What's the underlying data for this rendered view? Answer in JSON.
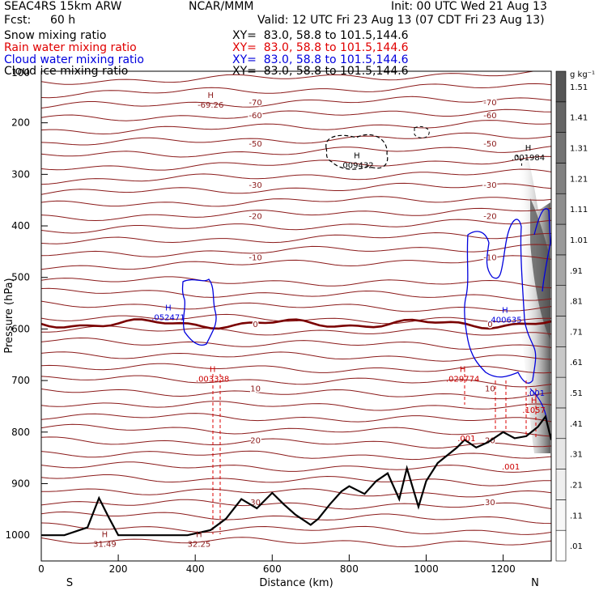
{
  "header": {
    "model": "SEAC4RS 15km ARW",
    "org": "NCAR/MMM",
    "init": "Init: 00 UTC Wed 21 Aug 13",
    "fcst_label": "Fcst:",
    "fcst_value": "60 h",
    "valid": "Valid: 12 UTC Fri 23 Aug 13 (07 CDT Fri 23 Aug 13)"
  },
  "fields": [
    {
      "name": "Snow mixing ratio",
      "xy": "XY=  83.0, 58.8 to 101.5,144.6",
      "color": "#000000"
    },
    {
      "name": "Rain water mixing ratio",
      "xy": "XY=  83.0, 58.8 to 101.5,144.6",
      "color": "#e00000"
    },
    {
      "name": "Cloud water mixing ratio",
      "xy": "XY=  83.0, 58.8 to 101.5,144.6",
      "color": "#0000dd"
    },
    {
      "name": "Cloud ice mixing ratio",
      "xy": "XY=  83.0, 58.8 to 101.5,144.6",
      "color": "#000000"
    }
  ],
  "chart_data": {
    "type": "cross-section contour",
    "xlabel": "Distance (km)",
    "ylabel": "Pressure (hPa)",
    "xlim": [
      0,
      1325
    ],
    "ylim": [
      1050,
      100
    ],
    "x_ticks": [
      0,
      200,
      400,
      600,
      800,
      1000,
      1200
    ],
    "y_ticks": [
      200,
      300,
      400,
      500,
      600,
      700,
      800,
      900,
      1000
    ],
    "y_top_label": "100",
    "left_end_label": "S",
    "right_end_label": "N",
    "colorbar": {
      "unit": "g kg⁻¹",
      "levels": [
        ".01",
        ".11",
        ".21",
        ".31",
        ".41",
        ".51",
        ".61",
        ".71",
        ".81",
        ".91",
        "1.01",
        "1.11",
        "1.21",
        "1.31",
        "1.41",
        "1.51"
      ],
      "colors": [
        "#ffffff",
        "#f7f7f7",
        "#efefef",
        "#e6e6e6",
        "#dcdcdc",
        "#d2d2d2",
        "#c8c8c8",
        "#bdbdbd",
        "#b2b2b2",
        "#a6a6a6",
        "#9a9a9a",
        "#8e8e8e",
        "#818181",
        "#737373",
        "#656565",
        "#555555"
      ]
    },
    "isotherms_celsius": [
      {
        "label": "-70",
        "p": 160
      },
      {
        "label": "-60",
        "p": 185
      },
      {
        "label": "-50",
        "p": 240
      },
      {
        "label": "-30",
        "p": 320
      },
      {
        "label": "-20",
        "p": 380
      },
      {
        "label": "-10",
        "p": 460
      },
      {
        "label": "0",
        "p": 590
      },
      {
        "label": "10",
        "p": 715
      },
      {
        "label": "20",
        "p": 815
      },
      {
        "label": "30",
        "p": 935
      }
    ],
    "annotations": [
      {
        "text": "H",
        "sub": "-69.26",
        "x": 440,
        "p": 158,
        "color": "#8b1a1a"
      },
      {
        "text": "H",
        "sub": ".009432",
        "x": 820,
        "p": 275,
        "color": "#000000"
      },
      {
        "text": "H",
        "sub": ".001984",
        "x": 1265,
        "p": 260,
        "color": "#000000"
      },
      {
        "text": "H",
        "sub": ".052471",
        "x": 330,
        "p": 570,
        "color": "#0000dd"
      },
      {
        "text": "H",
        "sub": ".400635",
        "x": 1205,
        "p": 575,
        "color": "#0000dd"
      },
      {
        "text": "H",
        "sub": ".003338",
        "x": 445,
        "p": 690,
        "color": "#cc0000"
      },
      {
        "text": "H",
        "sub": ".029774",
        "x": 1095,
        "p": 690,
        "color": "#cc0000"
      },
      {
        "text": "",
        "sub": ".001",
        "x": 1105,
        "p": 805,
        "color": "#cc0000"
      },
      {
        "text": "",
        "sub": ".001",
        "x": 1220,
        "p": 860,
        "color": "#cc0000"
      },
      {
        "text": "",
        "sub": ".001",
        "x": 1285,
        "p": 717,
        "color": "#0000dd"
      },
      {
        "text": "H",
        "sub": ".1057",
        "x": 1280,
        "p": 750,
        "color": "#cc0000"
      },
      {
        "text": "H",
        "sub": "31.49",
        "x": 165,
        "p": 1010,
        "color": "#8b1a1a"
      },
      {
        "text": "H",
        "sub": "32.25",
        "x": 410,
        "p": 1010,
        "color": "#8b1a1a"
      }
    ],
    "terrain_surface_hpa": [
      [
        0,
        1000
      ],
      [
        60,
        1000
      ],
      [
        120,
        985
      ],
      [
        150,
        928
      ],
      [
        175,
        965
      ],
      [
        200,
        1000
      ],
      [
        270,
        1000
      ],
      [
        330,
        1000
      ],
      [
        380,
        1000
      ],
      [
        440,
        990
      ],
      [
        480,
        968
      ],
      [
        520,
        930
      ],
      [
        560,
        948
      ],
      [
        600,
        918
      ],
      [
        630,
        940
      ],
      [
        660,
        960
      ],
      [
        700,
        980
      ],
      [
        720,
        968
      ],
      [
        750,
        940
      ],
      [
        780,
        915
      ],
      [
        800,
        905
      ],
      [
        840,
        920
      ],
      [
        870,
        895
      ],
      [
        900,
        880
      ],
      [
        930,
        930
      ],
      [
        950,
        870
      ],
      [
        980,
        945
      ],
      [
        1000,
        895
      ],
      [
        1030,
        860
      ],
      [
        1050,
        848
      ],
      [
        1080,
        830
      ],
      [
        1100,
        815
      ],
      [
        1130,
        830
      ],
      [
        1160,
        820
      ],
      [
        1200,
        800
      ],
      [
        1230,
        812
      ],
      [
        1260,
        808
      ],
      [
        1290,
        790
      ],
      [
        1310,
        770
      ],
      [
        1325,
        815
      ]
    ]
  }
}
